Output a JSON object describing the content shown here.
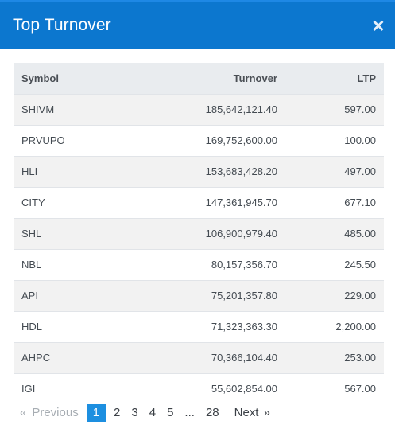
{
  "modal": {
    "title": "Top Turnover",
    "close_glyph": "×"
  },
  "table": {
    "headers": {
      "symbol": "Symbol",
      "turnover": "Turnover",
      "ltp": "LTP"
    },
    "rows": [
      {
        "symbol": "SHIVM",
        "turnover": "185,642,121.40",
        "ltp": "597.00"
      },
      {
        "symbol": "PRVUPO",
        "turnover": "169,752,600.00",
        "ltp": "100.00"
      },
      {
        "symbol": "HLI",
        "turnover": "153,683,428.20",
        "ltp": "497.00"
      },
      {
        "symbol": "CITY",
        "turnover": "147,361,945.70",
        "ltp": "677.10"
      },
      {
        "symbol": "SHL",
        "turnover": "106,900,979.40",
        "ltp": "485.00"
      },
      {
        "symbol": "NBL",
        "turnover": "80,157,356.70",
        "ltp": "245.50"
      },
      {
        "symbol": "API",
        "turnover": "75,201,357.80",
        "ltp": "229.00"
      },
      {
        "symbol": "HDL",
        "turnover": "71,323,363.30",
        "ltp": "2,200.00"
      },
      {
        "symbol": "AHPC",
        "turnover": "70,366,104.40",
        "ltp": "253.00"
      },
      {
        "symbol": "IGI",
        "turnover": "55,602,854.00",
        "ltp": "567.00"
      }
    ]
  },
  "pagination": {
    "prev_arrow": "«",
    "prev_label": "Previous",
    "pages": [
      "1",
      "2",
      "3",
      "4",
      "5"
    ],
    "ellipsis": "...",
    "last_page": "28",
    "next_label": "Next",
    "next_arrow": "»"
  }
}
